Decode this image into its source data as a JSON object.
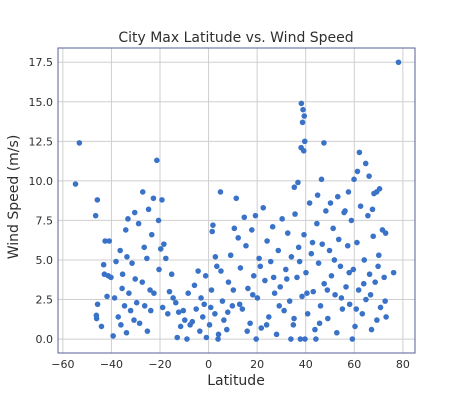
{
  "chart_data": {
    "type": "scatter",
    "title": "City Max Latitude vs. Wind Speed",
    "xlabel": "Latitude",
    "ylabel": "Wind Speed (m/s)",
    "xlim": [
      -62,
      85
    ],
    "ylim": [
      -0.88,
      18.4
    ],
    "xticks": [
      -60,
      -40,
      -20,
      0,
      20,
      40,
      60,
      80
    ],
    "yticks": [
      0.0,
      2.5,
      5.0,
      7.5,
      10.0,
      12.5,
      15.0,
      17.5
    ],
    "xtick_labels": [
      "−60",
      "−40",
      "−20",
      "0",
      "20",
      "40",
      "60",
      "80"
    ],
    "ytick_labels": [
      "0.0",
      "2.5",
      "5.0",
      "7.5",
      "10.0",
      "12.5",
      "15.0",
      "17.5"
    ],
    "grid": true,
    "colors": {
      "marker": "#3a72c8",
      "grid": "#cfcfcf",
      "frame": "#5a5f9a"
    },
    "series": [
      {
        "points": [
          [
            -54.8,
            9.8
          ],
          [
            -53.2,
            12.4
          ],
          [
            78.2,
            17.5
          ],
          [
            76.2,
            4.2
          ],
          [
            38.2,
            14.9
          ],
          [
            38.9,
            14.5
          ],
          [
            39.4,
            14.1
          ],
          [
            38.7,
            13.7
          ],
          [
            39.6,
            12.5
          ],
          [
            38.1,
            12.1
          ],
          [
            39.2,
            11.9
          ],
          [
            47.5,
            12.4
          ],
          [
            36.8,
            9.9
          ],
          [
            35.3,
            9.6
          ],
          [
            62.1,
            11.8
          ],
          [
            64.7,
            11.1
          ],
          [
            61.3,
            10.6
          ],
          [
            46.5,
            10.1
          ],
          [
            57.6,
            9.3
          ],
          [
            69.2,
            9.3
          ],
          [
            68.1,
            9.2
          ],
          [
            -45.8,
            8.8
          ],
          [
            -46.5,
            7.8
          ],
          [
            -42.6,
            6.2
          ],
          [
            -40.9,
            6.2
          ],
          [
            -43.2,
            4.7
          ],
          [
            -42.9,
            4.1
          ],
          [
            -41.3,
            4.0
          ],
          [
            -38.7,
            2.6
          ],
          [
            -41.8,
            2.7
          ],
          [
            -45.7,
            2.2
          ],
          [
            -46.2,
            1.5
          ],
          [
            -46.1,
            1.3
          ],
          [
            -36.4,
            5.6
          ],
          [
            -35.6,
            3.2
          ],
          [
            -33.2,
            7.6
          ],
          [
            -34.1,
            6.9
          ],
          [
            -33.6,
            5.2
          ],
          [
            -30.4,
            8.0
          ],
          [
            -31.5,
            4.8
          ],
          [
            -28.8,
            7.3
          ],
          [
            -27.1,
            9.3
          ],
          [
            -26.5,
            5.8
          ],
          [
            -25.4,
            5.1
          ],
          [
            -24.7,
            8.2
          ],
          [
            -21.3,
            11.3
          ],
          [
            -22.7,
            8.9
          ],
          [
            -20.6,
            7.5
          ],
          [
            -19.2,
            8.8
          ],
          [
            -18.4,
            6.0
          ],
          [
            -17.6,
            5.1
          ],
          [
            -20.4,
            4.4
          ],
          [
            -22.5,
            2.9
          ],
          [
            -23.8,
            1.8
          ],
          [
            -25.2,
            0.5
          ],
          [
            -28.4,
            1.0
          ],
          [
            -30.7,
            1.2
          ],
          [
            -32.1,
            1.8
          ],
          [
            -34.6,
            2.1
          ],
          [
            -37.2,
            1.4
          ],
          [
            -36.1,
            0.9
          ],
          [
            -33.8,
            0.4
          ],
          [
            -29.6,
            2.3
          ],
          [
            -27.3,
            3.6
          ],
          [
            -24.1,
            3.1
          ],
          [
            -18.9,
            2.0
          ],
          [
            -16.8,
            1.6
          ],
          [
            -15.2,
            4.1
          ],
          [
            -14.6,
            2.6
          ],
          [
            -12.3,
            1.7
          ],
          [
            -11.5,
            0.8
          ],
          [
            -9.8,
            1.2
          ],
          [
            -8.4,
            2.9
          ],
          [
            -6.7,
            1.1
          ],
          [
            -5.1,
            1.9
          ],
          [
            -4.3,
            4.3
          ],
          [
            -3.6,
            0.5
          ],
          [
            -2.4,
            1.4
          ],
          [
            -1.8,
            2.2
          ],
          [
            -0.9,
            0.1
          ],
          [
            0.4,
            0.9
          ],
          [
            1.2,
            3.1
          ],
          [
            1.8,
            7.2
          ],
          [
            1.5,
            6.8
          ],
          [
            2.6,
            1.6
          ],
          [
            3.4,
            4.6
          ],
          [
            4.1,
            0.3
          ],
          [
            4.9,
            9.3
          ],
          [
            5.7,
            2.4
          ],
          [
            6.3,
            1.2
          ],
          [
            7.5,
            0.6
          ],
          [
            8.2,
            3.6
          ],
          [
            9.1,
            5.3
          ],
          [
            9.8,
            2.1
          ],
          [
            10.6,
            7.0
          ],
          [
            11.4,
            8.9
          ],
          [
            12.2,
            6.4
          ],
          [
            13.1,
            4.5
          ],
          [
            13.9,
            1.9
          ],
          [
            14.7,
            7.7
          ],
          [
            15.4,
            5.9
          ],
          [
            16.2,
            3.2
          ],
          [
            17.1,
            1.0
          ],
          [
            17.8,
            6.9
          ],
          [
            18.6,
            4.0
          ],
          [
            19.3,
            7.8
          ],
          [
            20.1,
            2.6
          ],
          [
            20.8,
            5.1
          ],
          [
            21.7,
            0.7
          ],
          [
            22.5,
            8.3
          ],
          [
            23.2,
            3.7
          ],
          [
            24.1,
            6.2
          ],
          [
            24.8,
            1.4
          ],
          [
            25.6,
            4.9
          ],
          [
            26.4,
            7.1
          ],
          [
            27.2,
            2.9
          ],
          [
            28.0,
            0.3
          ],
          [
            28.7,
            5.6
          ],
          [
            29.5,
            3.3
          ],
          [
            30.3,
            7.6
          ],
          [
            31.1,
            1.8
          ],
          [
            31.8,
            4.4
          ],
          [
            32.6,
            6.7
          ],
          [
            33.4,
            2.4
          ],
          [
            34.1,
            5.2
          ],
          [
            34.9,
            0.9
          ],
          [
            35.6,
            7.9
          ],
          [
            36.4,
            3.9
          ],
          [
            37.1,
            5.8
          ],
          [
            37.8,
            0.0
          ],
          [
            38.5,
            2.7
          ],
          [
            39.3,
            6.6
          ],
          [
            40.1,
            4.2
          ],
          [
            40.8,
            1.6
          ],
          [
            41.6,
            8.6
          ],
          [
            42.3,
            5.4
          ],
          [
            43.1,
            3.0
          ],
          [
            43.8,
            0.6
          ],
          [
            44.6,
            7.3
          ],
          [
            45.3,
            4.8
          ],
          [
            46.1,
            2.1
          ],
          [
            46.8,
            6.0
          ],
          [
            47.6,
            3.5
          ],
          [
            48.3,
            8.1
          ],
          [
            49.1,
            1.3
          ],
          [
            49.8,
            5.6
          ],
          [
            50.6,
            4.0
          ],
          [
            51.3,
            7.0
          ],
          [
            52.1,
            2.8
          ],
          [
            52.8,
            0.4
          ],
          [
            53.6,
            6.3
          ],
          [
            54.3,
            4.6
          ],
          [
            55.1,
            1.9
          ],
          [
            55.8,
            8.0
          ],
          [
            56.6,
            3.3
          ],
          [
            57.3,
            5.9
          ],
          [
            58.1,
            2.2
          ],
          [
            58.8,
            7.5
          ],
          [
            59.6,
            4.4
          ],
          [
            60.3,
            0.8
          ],
          [
            61.1,
            6.1
          ],
          [
            61.8,
            3.1
          ],
          [
            62.6,
            8.4
          ],
          [
            63.3,
            1.6
          ],
          [
            64.1,
            5.0
          ],
          [
            64.8,
            2.5
          ],
          [
            65.6,
            7.8
          ],
          [
            66.3,
            4.1
          ],
          [
            67.1,
            0.6
          ],
          [
            67.8,
            6.5
          ],
          [
            68.6,
            3.6
          ],
          [
            69.3,
            1.2
          ],
          [
            70.1,
            5.3
          ],
          [
            70.8,
            2.0
          ],
          [
            71.6,
            6.9
          ],
          [
            72.3,
            3.9
          ],
          [
            73.1,
            1.4
          ],
          [
            -40.2,
            3.9
          ],
          [
            -38.1,
            4.9
          ],
          [
            -35.4,
            4.1
          ],
          [
            -32.8,
            2.9
          ],
          [
            -30.2,
            3.8
          ],
          [
            -26.3,
            2.1
          ],
          [
            -23.4,
            6.6
          ],
          [
            -19.7,
            5.7
          ],
          [
            -16.1,
            3.0
          ],
          [
            -13.5,
            2.3
          ],
          [
            -10.4,
            1.8
          ],
          [
            -7.6,
            0.9
          ],
          [
            -5.8,
            3.4
          ],
          [
            -3.1,
            2.6
          ],
          [
            -1.2,
            4.0
          ],
          [
            0.9,
            2.0
          ],
          [
            2.8,
            5.2
          ],
          [
            5.1,
            4.3
          ],
          [
            7.9,
            1.7
          ],
          [
            10.2,
            3.1
          ],
          [
            12.8,
            2.2
          ],
          [
            15.9,
            0.5
          ],
          [
            18.2,
            2.8
          ],
          [
            21.3,
            4.6
          ],
          [
            23.9,
            0.9
          ],
          [
            26.8,
            3.9
          ],
          [
            29.1,
            2.1
          ],
          [
            32.2,
            3.8
          ],
          [
            35.2,
            1.3
          ],
          [
            37.5,
            4.9
          ],
          [
            40.5,
            2.9
          ],
          [
            42.8,
            6.1
          ],
          [
            45.7,
            1.0
          ],
          [
            48.9,
            3.1
          ],
          [
            51.8,
            5.0
          ],
          [
            54.7,
            2.6
          ],
          [
            57.9,
            4.2
          ],
          [
            60.8,
            1.9
          ],
          [
            63.9,
            3.5
          ],
          [
            66.7,
            2.8
          ],
          [
            69.8,
            4.6
          ],
          [
            72.7,
            2.4
          ],
          [
            -44.1,
            0.8
          ],
          [
            -39.3,
            0.2
          ],
          [
            -12.9,
            0.1
          ],
          [
            -8.9,
            0.0
          ],
          [
            3.9,
            0.0
          ],
          [
            19.6,
            0.0
          ],
          [
            33.9,
            0.0
          ],
          [
            39.7,
            0.0
          ],
          [
            44.2,
            0.0
          ],
          [
            59.2,
            0.0
          ],
          [
            44.9,
            9.1
          ],
          [
            50.2,
            8.6
          ],
          [
            53.2,
            9.0
          ],
          [
            56.2,
            8.1
          ],
          [
            59.9,
            10.1
          ],
          [
            66.1,
            10.3
          ],
          [
            67.5,
            8.2
          ],
          [
            70.4,
            9.5
          ],
          [
            72.9,
            6.7
          ]
        ]
      }
    ]
  }
}
